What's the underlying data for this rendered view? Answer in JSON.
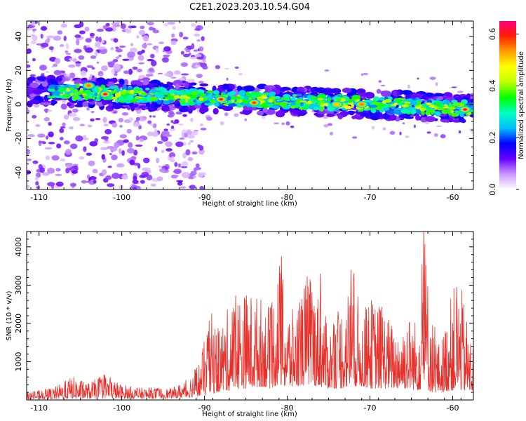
{
  "title": "C2E1.2023.203.10.54.G04",
  "chart_data": [
    {
      "type": "heatmap",
      "xlabel": "Height of straight line (km)",
      "ylabel": "Frequency (Hz)",
      "xlim": [
        -111.5,
        -57.5
      ],
      "ylim": [
        -50,
        49
      ],
      "x_ticks": [
        -110,
        -100,
        -90,
        -80,
        -70,
        -60
      ],
      "x_tick_labels": [
        "-110",
        "-100",
        "-90",
        "-80",
        "-70",
        "-60"
      ],
      "y_ticks": [
        -40,
        -20,
        0,
        20,
        40
      ],
      "y_tick_labels": [
        "-40",
        "-20",
        "0",
        "20",
        "40"
      ],
      "band_center_hz": [
        {
          "x": -110,
          "y": 8
        },
        {
          "x": -100,
          "y": 6
        },
        {
          "x": -90,
          "y": 4
        },
        {
          "x": -80,
          "y": 2
        },
        {
          "x": -70,
          "y": 0
        },
        {
          "x": -60,
          "y": -2
        },
        {
          "x": -57.5,
          "y": -3
        }
      ],
      "hotspots": [
        {
          "x": -102,
          "y": 6,
          "amp": 0.65
        },
        {
          "x": -104,
          "y": 11,
          "amp": 0.55
        },
        {
          "x": -88,
          "y": 3,
          "amp": 0.62
        },
        {
          "x": -84,
          "y": 1,
          "amp": 0.58
        },
        {
          "x": -74,
          "y": 0,
          "amp": 0.5
        },
        {
          "x": -71,
          "y": 0,
          "amp": 0.55
        },
        {
          "x": -58.5,
          "y": -3,
          "amp": 0.65
        }
      ],
      "noise_region_end_x": -92,
      "colorbar": {
        "label": "Normalized spectral amplitude",
        "range": [
          0,
          0.65
        ],
        "ticks": [
          0.0,
          0.2,
          0.4,
          0.6
        ],
        "tick_labels": [
          "0.0",
          "0.2",
          "0.4",
          "0.6"
        ],
        "colormap": [
          "#ffffff",
          "#cc99ff",
          "#6600ff",
          "#0000ff",
          "#00c0ff",
          "#00ffc0",
          "#00ff00",
          "#c0ff00",
          "#ffff00",
          "#ffa000",
          "#ff2000",
          "#ff0080"
        ]
      }
    },
    {
      "type": "line",
      "xlabel": "Height of straight line (km)",
      "ylabel": "SNR (10 * v/v)",
      "xlim": [
        -111.5,
        -57.5
      ],
      "ylim": [
        0,
        4400
      ],
      "x_ticks": [
        -110,
        -100,
        -90,
        -80,
        -70,
        -60
      ],
      "x_tick_labels": [
        "-110",
        "-100",
        "-90",
        "-80",
        "-70",
        "-60"
      ],
      "y_ticks": [
        1000,
        2000,
        3000,
        4000
      ],
      "y_tick_labels": [
        "1000",
        "2000",
        "3000",
        "4000"
      ],
      "color": "#e8302a",
      "series": [
        {
          "x": [
            -111.5,
            -110,
            -108,
            -106,
            -104,
            -102,
            -100,
            -98,
            -96,
            -94,
            -92,
            -90.5,
            -89.2,
            -88.5,
            -87,
            -86,
            -84.5,
            -83,
            -82,
            -81,
            -80,
            -79,
            -77.5,
            -76,
            -75,
            -73.5,
            -72,
            -71,
            -70,
            -68.5,
            -67,
            -65.5,
            -64.3,
            -63.5,
            -62.5,
            -61.5,
            -60,
            -59,
            -58,
            -57.5
          ],
          "envelope_max": [
            200,
            250,
            350,
            620,
            450,
            680,
            400,
            320,
            330,
            300,
            550,
            1100,
            2350,
            1800,
            2500,
            2900,
            2850,
            2700,
            2400,
            3750,
            2500,
            2300,
            3400,
            2700,
            1900,
            2500,
            3400,
            2200,
            2700,
            2500,
            1900,
            2300,
            2100,
            4400,
            2200,
            1400,
            2950,
            3000,
            1800,
            1500
          ],
          "envelope_min": [
            20,
            30,
            30,
            40,
            40,
            50,
            40,
            40,
            40,
            50,
            60,
            100,
            150,
            200,
            250,
            300,
            300,
            350,
            300,
            400,
            300,
            350,
            400,
            350,
            300,
            300,
            350,
            350,
            300,
            300,
            300,
            300,
            250,
            300,
            200,
            200,
            250,
            250,
            200,
            200
          ]
        }
      ]
    }
  ]
}
